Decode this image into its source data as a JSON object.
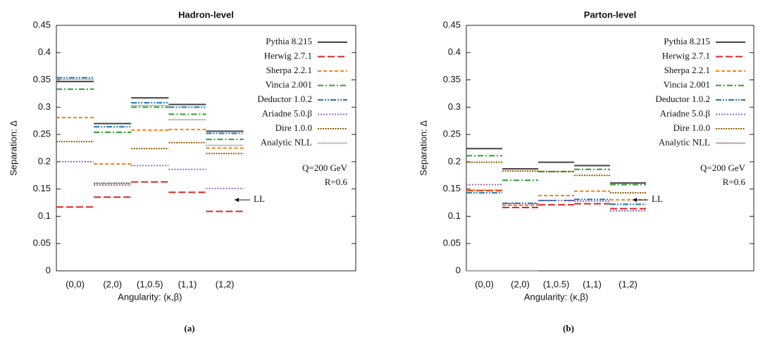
{
  "chart_data": [
    {
      "type": "step",
      "title": "Hadron-level",
      "panel_label": "(a)",
      "x_label": "Angularity: (κ,β)",
      "y_label": "Separation: Δ",
      "categories": [
        "(0,0)",
        "(2,0)",
        "(1,0.5)",
        "(1,1)",
        "(1,2)",
        null,
        null,
        null
      ],
      "ylim": [
        0,
        0.45
      ],
      "yticks": [
        0,
        0.05,
        0.1,
        0.15,
        0.2,
        0.25,
        0.3,
        0.35,
        0.4,
        0.45
      ],
      "annotations": [
        "Q=200 GeV",
        "R=0.6"
      ],
      "arrow": {
        "label": "LL",
        "value": 0.13
      },
      "series": [
        {
          "name": "Pythia 8.215",
          "color": "#444444",
          "dash": "",
          "values": [
            0.347,
            0.27,
            0.317,
            0.305,
            0.256,
            null,
            null,
            null
          ]
        },
        {
          "name": "Herwig 2.7.1",
          "color": "#d62728",
          "dash": "10,4",
          "values": [
            0.117,
            0.135,
            0.163,
            0.144,
            0.109,
            null,
            null,
            null
          ]
        },
        {
          "name": "Sherpa 2.2.1",
          "color": "#ff7f0e",
          "dash": "5,3",
          "values": [
            0.281,
            0.196,
            0.258,
            0.259,
            0.225,
            null,
            null,
            null
          ]
        },
        {
          "name": "Vincia 2.001",
          "color": "#2ca02c",
          "dash": "8,3,2,3",
          "values": [
            0.333,
            0.254,
            0.3,
            0.287,
            0.241,
            null,
            null,
            null
          ]
        },
        {
          "name": "Deductor 1.0.2",
          "color": "#1f77b4",
          "dash": "8,2,2,2,2,2",
          "values": [
            0.354,
            0.264,
            0.308,
            0.3,
            0.252,
            null,
            null,
            null
          ]
        },
        {
          "name": "Ariadne 5.0.β",
          "color": "#9467bd",
          "dash": "2,2",
          "values": [
            0.2,
            0.157,
            0.193,
            0.186,
            0.151,
            null,
            null,
            null
          ]
        },
        {
          "name": "Dire 1.0.0",
          "color": "#8b5a00",
          "dash": "2,1.5",
          "values": [
            0.237,
            0.16,
            0.224,
            0.235,
            0.215,
            null,
            null,
            null
          ]
        },
        {
          "name": "Analytic NLL",
          "color": "#999999",
          "dash": "1.5,1",
          "values": [
            0.351,
            0.161,
            0.303,
            0.277,
            0.23,
            null,
            null,
            null
          ]
        }
      ]
    },
    {
      "type": "step",
      "title": "Parton-level",
      "panel_label": "(b)",
      "x_label": "Angularity: (κ,β)",
      "y_label": "Separation: Δ",
      "categories": [
        "(0,0)",
        "(2,0)",
        "(1,0.5)",
        "(1,1)",
        "(1,2)",
        null,
        null,
        null
      ],
      "ylim": [
        0,
        0.45
      ],
      "yticks": [
        0,
        0.05,
        0.1,
        0.15,
        0.2,
        0.25,
        0.3,
        0.35,
        0.4,
        0.45
      ],
      "annotations": [
        "Q=200 GeV",
        "R=0.6"
      ],
      "arrow": {
        "label": "LL",
        "value": 0.13
      },
      "series": [
        {
          "name": "Pythia 8.215",
          "color": "#444444",
          "dash": "",
          "values": [
            0.224,
            0.187,
            0.199,
            0.193,
            0.161,
            null,
            null,
            null
          ]
        },
        {
          "name": "Herwig 2.7.1",
          "color": "#d62728",
          "dash": "10,4",
          "values": [
            0.147,
            0.116,
            0.121,
            0.123,
            0.114,
            null,
            null,
            null
          ]
        },
        {
          "name": "Sherpa 2.2.1",
          "color": "#ff7f0e",
          "dash": "5,3",
          "values": [
            0.148,
            0.12,
            0.138,
            0.146,
            0.13,
            null,
            null,
            null
          ]
        },
        {
          "name": "Vincia 2.001",
          "color": "#2ca02c",
          "dash": "8,3,2,3",
          "values": [
            0.211,
            0.166,
            0.182,
            0.186,
            0.158,
            null,
            null,
            null
          ]
        },
        {
          "name": "Deductor 1.0.2",
          "color": "#1f77b4",
          "dash": "8,2,2,2,2,2",
          "values": [
            0.143,
            0.124,
            0.129,
            0.131,
            0.122,
            null,
            null,
            null
          ]
        },
        {
          "name": "Ariadne 5.0.β",
          "color": "#9467bd",
          "dash": "2,2",
          "values": [
            0.158,
            0.123,
            0.129,
            0.128,
            0.11,
            null,
            null,
            null
          ]
        },
        {
          "name": "Dire 1.0.0",
          "color": "#8b5a00",
          "dash": "2,1.5",
          "values": [
            0.199,
            0.183,
            0.182,
            0.175,
            0.143,
            null,
            null,
            null
          ]
        },
        {
          "name": "Analytic NLL",
          "color": "#aaaaaa",
          "dash": "",
          "values": [
            0,
            0,
            null,
            null,
            null,
            null,
            null,
            null
          ]
        }
      ]
    }
  ]
}
